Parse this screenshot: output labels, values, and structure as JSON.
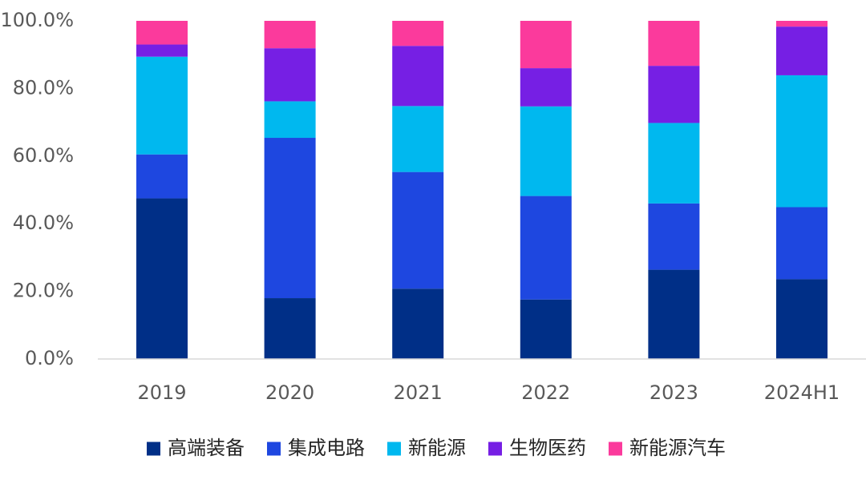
{
  "chart_data": {
    "type": "bar",
    "stacked": true,
    "normalized": true,
    "categories": [
      "2019",
      "2020",
      "2021",
      "2022",
      "2023",
      "2024H1"
    ],
    "series": [
      {
        "name": "高端装备",
        "color": "#002f87",
        "values": [
          47.5,
          18.0,
          20.8,
          17.6,
          26.4,
          23.6
        ]
      },
      {
        "name": "集成电路",
        "color": "#1e47e0",
        "values": [
          13.0,
          47.4,
          34.5,
          30.6,
          19.6,
          21.3
        ]
      },
      {
        "name": "新能源",
        "color": "#00b8ef",
        "values": [
          28.9,
          10.8,
          19.5,
          26.5,
          23.8,
          39.0
        ]
      },
      {
        "name": "生物医药",
        "color": "#761fe4",
        "values": [
          3.6,
          15.7,
          17.8,
          11.3,
          16.9,
          14.4
        ]
      },
      {
        "name": "新能源汽车",
        "color": "#fb3a9c",
        "values": [
          7.0,
          8.1,
          7.4,
          14.0,
          13.3,
          1.7
        ]
      }
    ],
    "yticks": [
      "0.0%",
      "20.0%",
      "40.0%",
      "60.0%",
      "80.0%",
      "100.0%"
    ],
    "ylim": [
      0,
      100
    ],
    "title": "",
    "xlabel": "",
    "ylabel": "",
    "grid": false,
    "legend_position": "bottom"
  }
}
